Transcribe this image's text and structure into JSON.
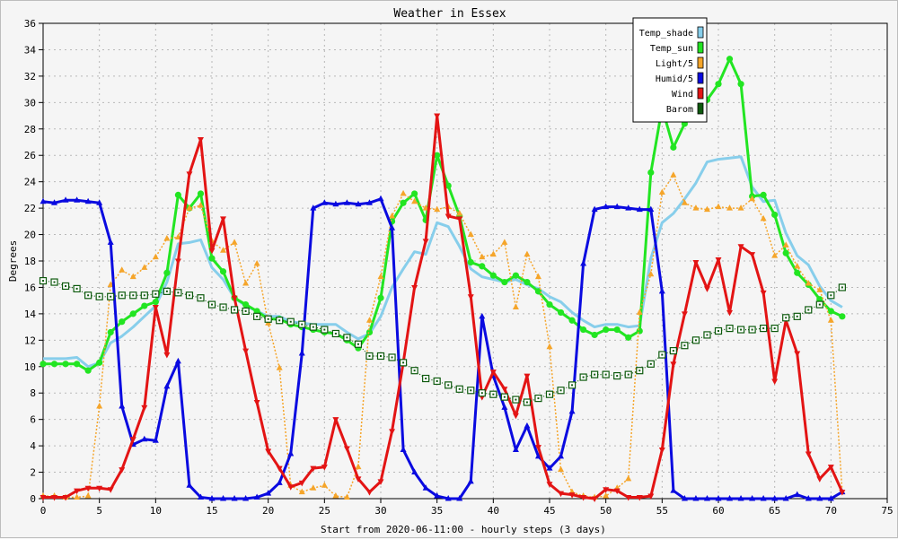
{
  "chart_data": {
    "type": "line",
    "title": "Weather in Essex",
    "xlabel": "Start from 2020-06-11:00 - hourly steps (3 days)",
    "ylabel": "Degrees",
    "xlim": [
      0,
      75
    ],
    "ylim": [
      0,
      36
    ],
    "x_ticks": [
      0,
      5,
      10,
      15,
      20,
      25,
      30,
      35,
      40,
      45,
      50,
      55,
      60,
      65,
      70,
      75
    ],
    "y_ticks": [
      0,
      2,
      4,
      6,
      8,
      10,
      12,
      14,
      16,
      18,
      20,
      22,
      24,
      26,
      28,
      30,
      32,
      34,
      36
    ],
    "grid": true,
    "legend_position": "top-right",
    "x": [
      0,
      1,
      2,
      3,
      4,
      5,
      6,
      7,
      8,
      9,
      10,
      11,
      12,
      13,
      14,
      15,
      16,
      17,
      18,
      19,
      20,
      21,
      22,
      23,
      24,
      25,
      26,
      27,
      28,
      29,
      30,
      31,
      32,
      33,
      34,
      35,
      36,
      37,
      38,
      39,
      40,
      41,
      42,
      43,
      44,
      45,
      46,
      47,
      48,
      49,
      50,
      51,
      52,
      53,
      54,
      55,
      56,
      57,
      58,
      59,
      60,
      61,
      62,
      63,
      64,
      65,
      66,
      67,
      68,
      69,
      70,
      71
    ],
    "series": [
      {
        "name": "Temp_shade",
        "color": "#87ceeb",
        "marker": "none",
        "dash": "none",
        "width": 3,
        "values": [
          10.6,
          10.6,
          10.6,
          10.7,
          10.0,
          10.3,
          11.8,
          12.3,
          13.0,
          13.8,
          14.6,
          16.4,
          19.3,
          19.4,
          19.6,
          17.5,
          16.6,
          15.2,
          14.6,
          14.2,
          13.8,
          13.8,
          13.4,
          13.3,
          13.2,
          13.2,
          13.2,
          12.6,
          12.1,
          12.5,
          13.8,
          16.0,
          17.4,
          18.7,
          18.5,
          20.9,
          20.6,
          19.1,
          17.4,
          16.8,
          16.6,
          16.4,
          16.6,
          16.2,
          15.9,
          15.3,
          14.9,
          14.1,
          13.5,
          13.0,
          13.2,
          13.2,
          13.0,
          13.1,
          18.2,
          20.9,
          21.6,
          22.7,
          23.9,
          25.5,
          25.7,
          25.8,
          25.9,
          23.6,
          22.5,
          22.6,
          20.1,
          18.4,
          17.7,
          16.1,
          15.0,
          14.5
        ]
      },
      {
        "name": "Temp_sun",
        "color": "#22e522",
        "marker": "circle",
        "dash": "none",
        "width": 3,
        "values": [
          10.2,
          10.2,
          10.2,
          10.2,
          9.7,
          10.3,
          12.6,
          13.4,
          14.0,
          14.6,
          14.9,
          17.1,
          23.0,
          22.0,
          23.1,
          18.2,
          17.2,
          15.2,
          14.7,
          14.2,
          13.6,
          13.6,
          13.2,
          13.0,
          12.8,
          12.6,
          12.5,
          12.0,
          11.4,
          12.6,
          15.2,
          21.0,
          22.4,
          23.1,
          21.1,
          26.0,
          23.7,
          21.4,
          17.9,
          17.6,
          16.9,
          16.4,
          16.9,
          16.4,
          15.7,
          14.7,
          14.1,
          13.5,
          12.8,
          12.4,
          12.8,
          12.8,
          12.2,
          12.7,
          24.7,
          29.6,
          26.6,
          28.4,
          30.3,
          30.2,
          31.4,
          33.3,
          31.4,
          22.9,
          23.0,
          21.5,
          18.6,
          17.1,
          16.2,
          15.1,
          14.2,
          13.8
        ]
      },
      {
        "name": "Light/5",
        "color": "#f5a52a",
        "marker": "triangle-up",
        "dash": "2,2",
        "width": 1.5,
        "values": [
          0.2,
          0.2,
          0.1,
          0.1,
          0.2,
          7.0,
          16.2,
          17.3,
          16.8,
          17.5,
          18.3,
          19.7,
          19.8,
          22.0,
          22.2,
          19.5,
          18.8,
          19.4,
          16.3,
          17.8,
          13.3,
          9.9,
          1.0,
          0.5,
          0.8,
          1.0,
          0.2,
          0.1,
          2.4,
          13.5,
          16.8,
          21.4,
          23.1,
          22.5,
          22.0,
          21.9,
          22.1,
          21.6,
          20.0,
          18.3,
          18.5,
          19.4,
          14.5,
          18.5,
          16.8,
          11.5,
          2.2,
          0.5,
          0.2,
          0.1,
          0.2,
          0.8,
          1.5,
          14.1,
          17.0,
          23.2,
          24.5,
          22.4,
          22.0,
          21.9,
          22.1,
          22.0,
          22.0,
          22.7,
          21.2,
          18.4,
          19.2,
          17.6,
          16.3,
          15.8,
          13.5,
          0.5
        ]
      },
      {
        "name": "Humid/5",
        "color": "#0a0ae0",
        "marker": "triangle-up",
        "dash": "none",
        "width": 3,
        "values": [
          22.5,
          22.4,
          22.6,
          22.6,
          22.5,
          22.4,
          19.4,
          7.0,
          4.1,
          4.5,
          4.4,
          8.5,
          10.4,
          1.0,
          0.1,
          0.0,
          0.0,
          0.0,
          0.0,
          0.1,
          0.4,
          1.2,
          3.4,
          11.0,
          22.0,
          22.4,
          22.3,
          22.4,
          22.3,
          22.4,
          22.7,
          20.5,
          3.7,
          2.0,
          0.8,
          0.2,
          0.0,
          0.0,
          1.3,
          13.8,
          9.3,
          6.9,
          3.7,
          5.5,
          3.2,
          2.3,
          3.2,
          6.6,
          17.8,
          21.9,
          22.1,
          22.1,
          22.0,
          21.9,
          21.9,
          15.7,
          0.6,
          0.0,
          0.0,
          0.0,
          0.0,
          0.0,
          0.0,
          0.0,
          0.0,
          0.0,
          0.0,
          0.3,
          0.0,
          0.0,
          0.0,
          0.5
        ]
      },
      {
        "name": "Wind",
        "color": "#e31414",
        "marker": "triangle-down",
        "dash": "none",
        "width": 3,
        "values": [
          0.1,
          0.1,
          0.1,
          0.6,
          0.8,
          0.8,
          0.7,
          2.2,
          4.5,
          6.9,
          14.5,
          10.9,
          18.0,
          24.6,
          27.2,
          18.8,
          21.2,
          15.2,
          11.2,
          7.3,
          3.6,
          2.3,
          0.9,
          1.2,
          2.3,
          2.4,
          6.0,
          3.8,
          1.5,
          0.5,
          1.3,
          5.1,
          10.3,
          16.0,
          19.5,
          29.0,
          21.4,
          21.2,
          15.3,
          7.7,
          9.6,
          8.3,
          6.3,
          9.3,
          3.9,
          1.1,
          0.4,
          0.3,
          0.1,
          0.0,
          0.7,
          0.6,
          0.1,
          0.1,
          0.2,
          3.7,
          10.2,
          14.0,
          17.9,
          15.9,
          18.1,
          14.1,
          19.1,
          18.5,
          15.6,
          8.9,
          13.5,
          11.0,
          3.4,
          1.5,
          2.4,
          0.5
        ]
      },
      {
        "name": "Barom",
        "color": "#0e5a0e",
        "marker": "square-dot",
        "dash": "1,2",
        "width": 1.2,
        "values": [
          16.5,
          16.4,
          16.1,
          15.9,
          15.4,
          15.3,
          15.3,
          15.4,
          15.4,
          15.4,
          15.5,
          15.7,
          15.6,
          15.4,
          15.2,
          14.7,
          14.5,
          14.3,
          14.2,
          13.8,
          13.6,
          13.5,
          13.4,
          13.2,
          13.0,
          12.8,
          12.5,
          12.2,
          11.7,
          10.8,
          10.8,
          10.7,
          10.3,
          9.7,
          9.1,
          8.9,
          8.6,
          8.3,
          8.2,
          8.0,
          7.9,
          7.7,
          7.5,
          7.3,
          7.6,
          7.9,
          8.2,
          8.6,
          9.2,
          9.4,
          9.4,
          9.3,
          9.4,
          9.7,
          10.2,
          10.9,
          11.2,
          11.6,
          12.0,
          12.4,
          12.7,
          12.9,
          12.8,
          12.8,
          12.9,
          12.9,
          13.7,
          13.8,
          14.3,
          14.7,
          15.4,
          16.0
        ]
      }
    ]
  }
}
